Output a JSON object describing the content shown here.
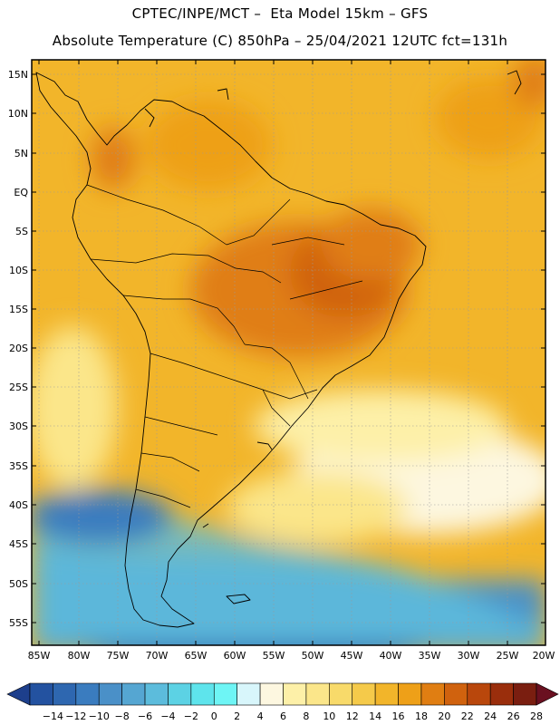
{
  "header": {
    "line1": "CPTEC/INPE/MCT –  Eta Model 15km – GFS",
    "line2": "Absolute Temperature (C) 850hPa – 25/04/2021 12UTC fct=131h"
  },
  "map": {
    "lat_labels": [
      "15N",
      "10N",
      "5N",
      "EQ",
      "5S",
      "10S",
      "15S",
      "20S",
      "25S",
      "30S",
      "35S",
      "40S",
      "45S",
      "50S",
      "55S"
    ],
    "lon_labels": [
      "85W",
      "80W",
      "75W",
      "70W",
      "65W",
      "60W",
      "55W",
      "50W",
      "45W",
      "40W",
      "35W",
      "30W",
      "25W",
      "20W"
    ],
    "lat_range": [
      15,
      -57.5
    ],
    "lon_range": [
      -85.5,
      -20
    ],
    "grid": "dotted"
  },
  "colorbar": {
    "labels": [
      "-14",
      "-12",
      "-10",
      "-8",
      "-6",
      "-4",
      "-2",
      "0",
      "2",
      "4",
      "6",
      "8",
      "10",
      "12",
      "14",
      "16",
      "18",
      "20",
      "22",
      "24",
      "26",
      "28"
    ],
    "colors": [
      "#1d3f8c",
      "#2352a0",
      "#2e67b0",
      "#3a7cbf",
      "#4a90c8",
      "#55a6d2",
      "#5cbcdc",
      "#5cd2e4",
      "#5ee4ec",
      "#6ef5f5",
      "#d8f6fb",
      "#fdf7e0",
      "#fdf0a8",
      "#fbe68a",
      "#f8da6a",
      "#f5ca4a",
      "#f2b52a",
      "#eea018",
      "#e07e12",
      "#d0620e",
      "#b9470c",
      "#9a2e0c",
      "#7a1e10",
      "#6a1020"
    ]
  }
}
